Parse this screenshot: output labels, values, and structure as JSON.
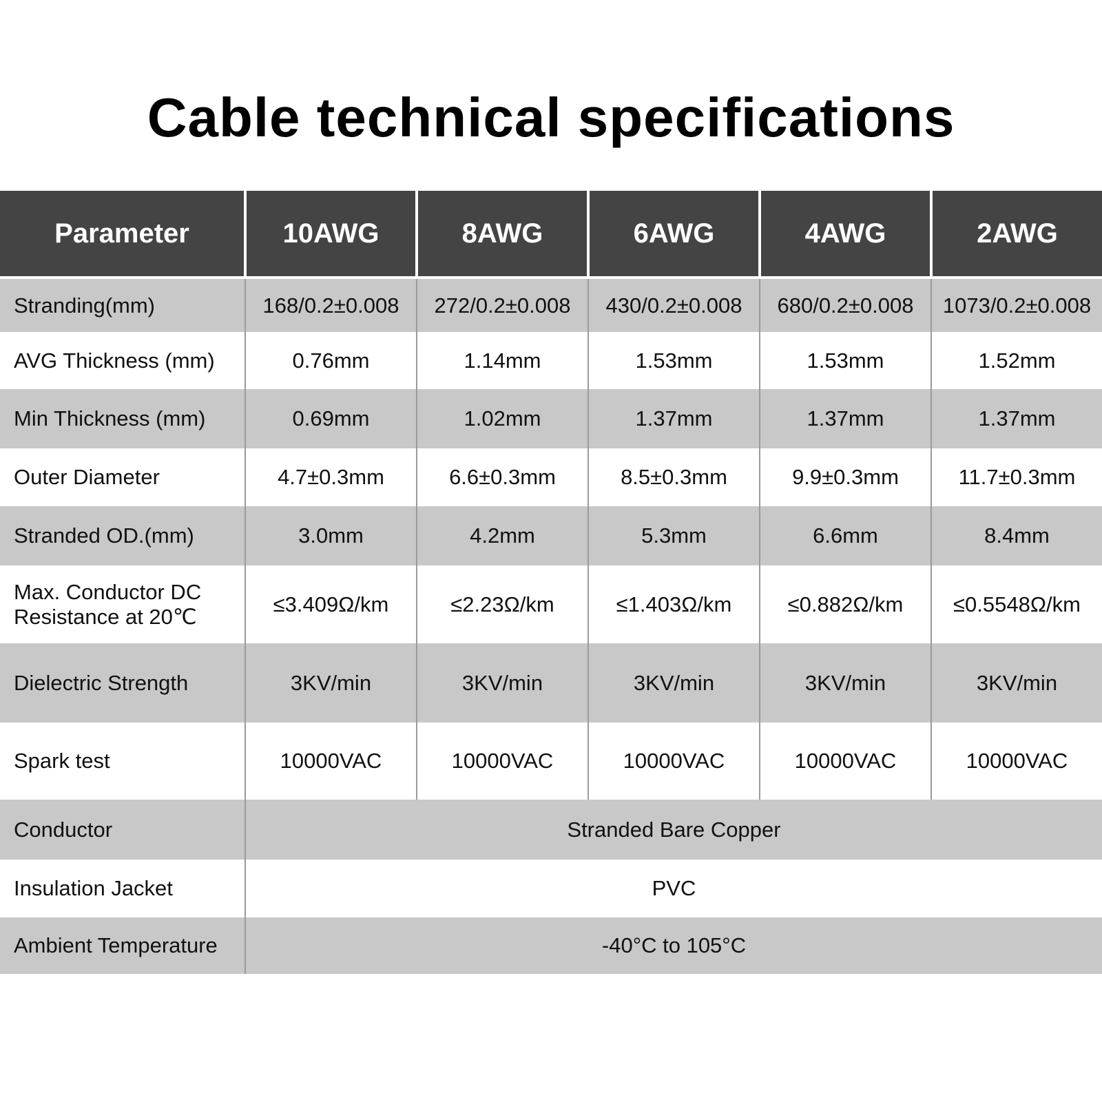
{
  "title": "Cable technical specifications",
  "header": [
    "Parameter",
    "10AWG",
    "8AWG",
    "6AWG",
    "4AWG",
    "2AWG"
  ],
  "rows": [
    {
      "label": "Stranding(mm)",
      "values": [
        "168/0.2±0.008",
        "272/0.2±0.008",
        "430/0.2±0.008",
        "680/0.2±0.008",
        "1073/0.2±0.008"
      ]
    },
    {
      "label": "AVG Thickness (mm)",
      "values": [
        "0.76mm",
        "1.14mm",
        "1.53mm",
        "1.53mm",
        "1.52mm"
      ]
    },
    {
      "label": "Min Thickness (mm)",
      "values": [
        "0.69mm",
        "1.02mm",
        "1.37mm",
        "1.37mm",
        "1.37mm"
      ]
    },
    {
      "label": "Outer Diameter",
      "values": [
        "4.7±0.3mm",
        "6.6±0.3mm",
        "8.5±0.3mm",
        "9.9±0.3mm",
        "11.7±0.3mm"
      ]
    },
    {
      "label": "Stranded OD.(mm)",
      "values": [
        "3.0mm",
        "4.2mm",
        "5.3mm",
        "6.6mm",
        "8.4mm"
      ]
    },
    {
      "label": "Max. Conductor DC Resistance at 20℃",
      "values": [
        "≤3.409Ω/km",
        "≤2.23Ω/km",
        "≤1.403Ω/km",
        "≤0.882Ω/km",
        "≤0.5548Ω/km"
      ]
    },
    {
      "label": "Dielectric Strength",
      "values": [
        "3KV/min",
        "3KV/min",
        "3KV/min",
        "3KV/min",
        "3KV/min"
      ]
    },
    {
      "label": "Spark test",
      "values": [
        "10000VAC",
        "10000VAC",
        "10000VAC",
        "10000VAC",
        "10000VAC"
      ]
    }
  ],
  "merged_rows": [
    {
      "label": "Conductor",
      "value": "Stranded Bare Copper"
    },
    {
      "label": "Insulation Jacket",
      "value": "PVC"
    },
    {
      "label": "Ambient Temperature",
      "value": "-40°C to 105°C"
    }
  ],
  "colors": {
    "header_bg": "#444444",
    "band_gray": "#c8c8c8",
    "band_white": "#ffffff"
  }
}
